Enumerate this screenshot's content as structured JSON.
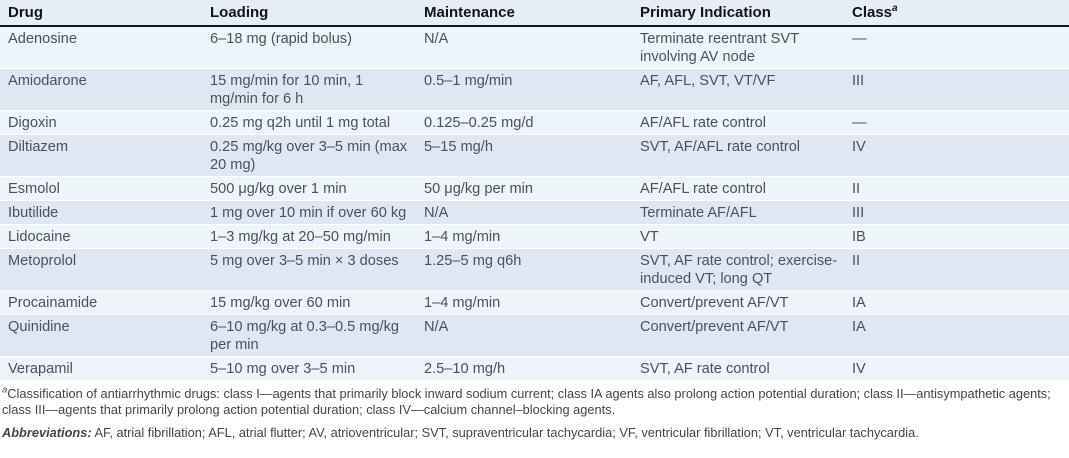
{
  "colors": {
    "header_bg": "#e7edf5",
    "header_rule": "#14161d",
    "header_text": "#12151c",
    "body_text": "#4a515d",
    "row_light": "#edf5fb",
    "row_dark": "#dee7f2",
    "footnote_text": "#3f4650"
  },
  "table": {
    "columns": [
      {
        "label": "Drug"
      },
      {
        "label": "Loading"
      },
      {
        "label": "Maintenance"
      },
      {
        "label": "Primary Indication"
      },
      {
        "label": "Class",
        "sup": "a"
      }
    ],
    "rows": [
      [
        "Adenosine",
        "6–18 mg (rapid bolus)",
        "N/A",
        "Terminate reentrant SVT involving AV node",
        "—"
      ],
      [
        "Amiodarone",
        "15 mg/min for 10 min, 1 mg/min for 6 h",
        "0.5–1 mg/min",
        "AF, AFL, SVT, VT/VF",
        "III"
      ],
      [
        "Digoxin",
        "0.25 mg q2h until 1 mg total",
        "0.125–0.25 mg/d",
        "AF/AFL rate control",
        "—"
      ],
      [
        "Diltiazem",
        "0.25 mg/kg over 3–5 min (max 20 mg)",
        "5–15 mg/h",
        "SVT, AF/AFL rate control",
        "IV"
      ],
      [
        "Esmolol",
        "500 μg/kg over 1 min",
        "50 μg/kg per min",
        "AF/AFL rate control",
        "II"
      ],
      [
        "Ibutilide",
        "1 mg over 10 min if over 60 kg",
        "N/A",
        "Terminate AF/AFL",
        "III"
      ],
      [
        "Lidocaine",
        "1–3 mg/kg at 20–50 mg/min",
        "1–4 mg/min",
        "VT",
        "IB"
      ],
      [
        "Metoprolol",
        "5 mg over 3–5 min × 3 doses",
        "1.25–5 mg q6h",
        "SVT, AF rate control; exercise-induced VT; long QT",
        "II"
      ],
      [
        "Procainamide",
        "15 mg/kg over 60 min",
        "1–4 mg/min",
        "Convert/prevent AF/VT",
        "IA"
      ],
      [
        "Quinidine",
        "6–10 mg/kg at 0.3–0.5 mg/kg per min",
        "N/A",
        "Convert/prevent AF/VT",
        "IA"
      ],
      [
        "Verapamil",
        "5–10 mg over 3–5 min",
        "2.5–10 mg/h",
        "SVT, AF rate control",
        "IV"
      ]
    ]
  },
  "footnotes": {
    "classification": {
      "marker": "a",
      "text": "Classification of antiarrhythmic drugs: class I—agents that primarily block inward sodium current; class IA agents also prolong action potential duration; class II—antisympathetic agents; class III—agents that primarily prolong action potential duration; class IV—calcium channel–blocking agents."
    },
    "abbreviations": {
      "label": "Abbreviations:",
      "text": " AF, atrial fibrillation; AFL, atrial flutter; AV, atrioventricular; SVT, supraventricular tachycardia; VF, ventricular fibrillation; VT, ventricular tachycardia."
    }
  }
}
